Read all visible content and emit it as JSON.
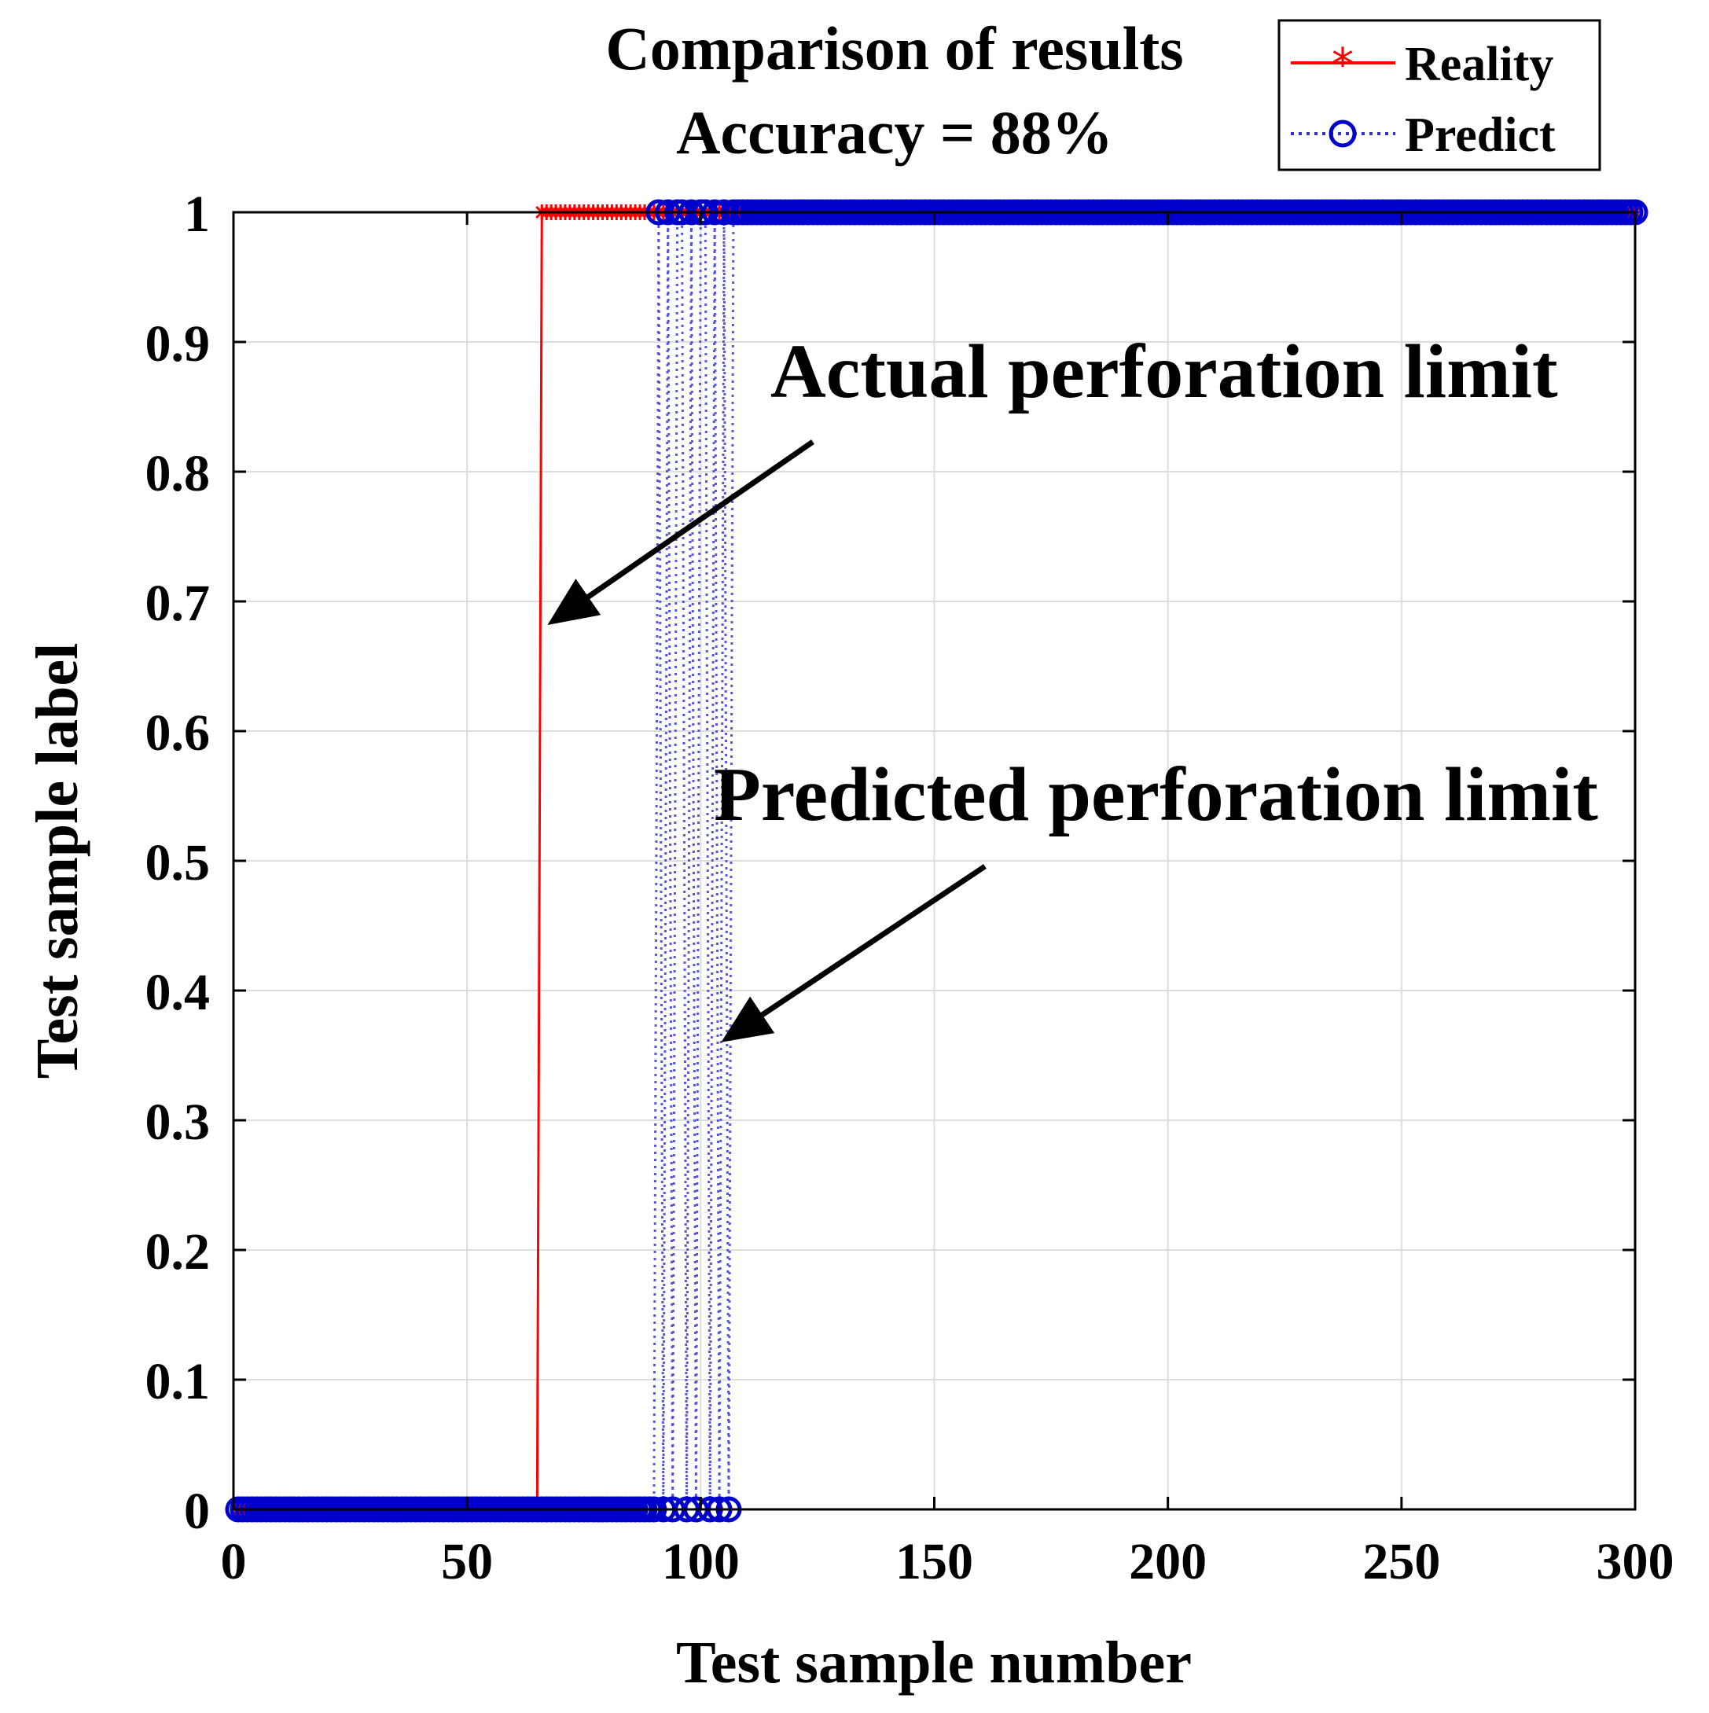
{
  "chart_data": {
    "type": "line",
    "title": "Comparison of results",
    "subtitle": "Accuracy = 88%",
    "xlabel": "Test sample number",
    "ylabel": "Test sample label",
    "xlim": [
      0,
      300
    ],
    "ylim": [
      0,
      1
    ],
    "xticks": [
      0,
      50,
      100,
      150,
      200,
      250,
      300
    ],
    "xtick_labels": [
      "0",
      "50",
      "100",
      "150",
      "200",
      "250",
      "300"
    ],
    "yticks": [
      0,
      0.1,
      0.2,
      0.3,
      0.4,
      0.5,
      0.6,
      0.7,
      0.8,
      0.9,
      1
    ],
    "ytick_labels": [
      "0",
      "0.1",
      "0.2",
      "0.3",
      "0.4",
      "0.5",
      "0.6",
      "0.7",
      "0.8",
      "0.9",
      "1"
    ],
    "grid": true,
    "legend": {
      "location": "top-right"
    },
    "series": [
      {
        "name": "Reality",
        "style": "solid line with asterisk markers",
        "color": "#ff0000",
        "description": "label 0 for samples 1-65, label 1 for samples 66-300",
        "segments": [
          {
            "x_start": 1,
            "x_end": 65,
            "y": 0
          },
          {
            "x_start": 66,
            "x_end": 300,
            "y": 1
          }
        ]
      },
      {
        "name": "Predict",
        "style": "dotted line with circle markers",
        "color": "#0000cc",
        "description": "label 0 for samples 1-90, mixed 0/1 for samples 91-106, label 1 for samples 107-300",
        "segments": [
          {
            "x_start": 1,
            "x_end": 90,
            "y": 0
          },
          {
            "x_start": 107,
            "x_end": 300,
            "y": 1
          }
        ],
        "transition_x": [
          91,
          92,
          93,
          94,
          95,
          96,
          97,
          98,
          99,
          100,
          101,
          102,
          103,
          104,
          105,
          106
        ],
        "transition_y": [
          1,
          0,
          1,
          0,
          1,
          1,
          0,
          1,
          0,
          1,
          1,
          0,
          1,
          0,
          1,
          0
        ]
      }
    ],
    "annotations": [
      {
        "text": "Actual perforation limit",
        "points_to": {
          "x": 67,
          "y": 0.69
        }
      },
      {
        "text": "Predicted perforation limit",
        "points_to": {
          "x": 104,
          "y": 0.36
        }
      }
    ]
  }
}
